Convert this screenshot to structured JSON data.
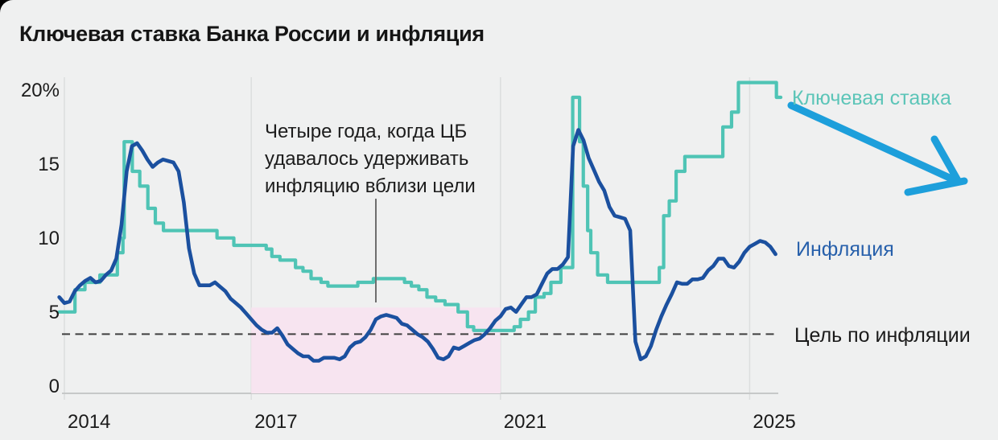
{
  "title": "Ключевая ставка Банка России и инфляция",
  "colors": {
    "background": "#eff0f0",
    "grid": "#dcdede",
    "axis": "#c6c8c8",
    "key_rate": "#4fc4b5",
    "key_rate_label": "#5cc5b8",
    "inflation": "#1b509f",
    "inflation_label": "#2760ab",
    "target_dash": "#3f3f3f",
    "highlight": "#f7e4f0",
    "pointer": "#6e6e6e",
    "arrow": "#1d9fdb"
  },
  "chart_data": {
    "type": "line",
    "title": "Ключевая ставка Банка России и инфляция",
    "x_ticks": [
      {
        "year": 2014,
        "label": "2014"
      },
      {
        "year": 2017,
        "label": "2017"
      },
      {
        "year": 2021,
        "label": "2021"
      },
      {
        "year": 2025,
        "label": "2025"
      }
    ],
    "y_ticks": [
      {
        "value": 20,
        "label": "20%"
      },
      {
        "value": 15,
        "label": "15"
      },
      {
        "value": 10,
        "label": "10"
      },
      {
        "value": 5,
        "label": "5"
      },
      {
        "value": 0,
        "label": "0"
      }
    ],
    "xlim": [
      2013.917,
      2025.5
    ],
    "ylim": [
      0,
      21.5
    ],
    "grid": "vertical-only",
    "legend_position": "right-inline",
    "target_line": {
      "value": 4,
      "label": "Цель по инфляции",
      "style": "dashed"
    },
    "highlight_region": {
      "x0": 2017,
      "x1": 2021,
      "y0": 0,
      "y1": 5.8,
      "label": "Четыре года, когда ЦБ\nудавалось удерживать\nинфляцию вблизи цели",
      "pointer_year": 2019.0
    },
    "series": [
      {
        "name": "Ключевая ставка",
        "type": "step",
        "unit": "%",
        "points": [
          [
            2013.917,
            5.5
          ],
          [
            2014.17,
            7.0
          ],
          [
            2014.33,
            7.5
          ],
          [
            2014.57,
            8.0
          ],
          [
            2014.85,
            9.5
          ],
          [
            2014.94,
            10.5
          ],
          [
            2014.96,
            17.0
          ],
          [
            2015.09,
            15.0
          ],
          [
            2015.21,
            14.0
          ],
          [
            2015.34,
            12.5
          ],
          [
            2015.46,
            11.5
          ],
          [
            2015.59,
            11.0
          ],
          [
            2016.45,
            10.5
          ],
          [
            2016.72,
            10.0
          ],
          [
            2017.24,
            9.75
          ],
          [
            2017.33,
            9.25
          ],
          [
            2017.46,
            9.0
          ],
          [
            2017.71,
            8.5
          ],
          [
            2017.83,
            8.25
          ],
          [
            2017.96,
            7.75
          ],
          [
            2018.12,
            7.5
          ],
          [
            2018.23,
            7.25
          ],
          [
            2018.71,
            7.5
          ],
          [
            2018.96,
            7.75
          ],
          [
            2019.46,
            7.5
          ],
          [
            2019.57,
            7.25
          ],
          [
            2019.69,
            7.0
          ],
          [
            2019.82,
            6.5
          ],
          [
            2019.96,
            6.25
          ],
          [
            2020.11,
            6.0
          ],
          [
            2020.32,
            5.5
          ],
          [
            2020.47,
            4.5
          ],
          [
            2020.57,
            4.25
          ],
          [
            2021.22,
            4.5
          ],
          [
            2021.32,
            5.0
          ],
          [
            2021.45,
            5.5
          ],
          [
            2021.56,
            6.5
          ],
          [
            2021.7,
            6.75
          ],
          [
            2021.81,
            7.5
          ],
          [
            2021.97,
            8.5
          ],
          [
            2022.16,
            20.0
          ],
          [
            2022.27,
            17.0
          ],
          [
            2022.33,
            14.0
          ],
          [
            2022.4,
            11.0
          ],
          [
            2022.45,
            9.5
          ],
          [
            2022.56,
            8.0
          ],
          [
            2022.72,
            7.5
          ],
          [
            2023.55,
            8.5
          ],
          [
            2023.62,
            12.0
          ],
          [
            2023.71,
            13.0
          ],
          [
            2023.82,
            15.0
          ],
          [
            2023.96,
            16.0
          ],
          [
            2024.57,
            18.0
          ],
          [
            2024.71,
            19.0
          ],
          [
            2024.82,
            21.0
          ],
          [
            2025.43,
            20.0
          ]
        ]
      },
      {
        "name": "Инфляция",
        "type": "line",
        "unit": "%",
        "x_start": 2013.917,
        "x_step_years": 0.08333,
        "values": [
          6.5,
          6.1,
          6.2,
          6.9,
          7.3,
          7.6,
          7.8,
          7.5,
          7.6,
          8.0,
          8.3,
          9.1,
          11.4,
          15.0,
          16.7,
          16.9,
          16.4,
          15.8,
          15.3,
          15.6,
          15.8,
          15.7,
          15.6,
          15.0,
          12.9,
          9.8,
          8.1,
          7.3,
          7.3,
          7.3,
          7.5,
          7.2,
          6.9,
          6.4,
          6.1,
          5.8,
          5.4,
          5.0,
          4.6,
          4.3,
          4.1,
          4.1,
          4.4,
          3.9,
          3.3,
          3.0,
          2.7,
          2.5,
          2.5,
          2.2,
          2.2,
          2.4,
          2.4,
          2.4,
          2.3,
          2.5,
          3.1,
          3.4,
          3.5,
          3.8,
          4.3,
          5.0,
          5.2,
          5.3,
          5.2,
          5.1,
          4.7,
          4.6,
          4.3,
          4.0,
          3.8,
          3.5,
          3.0,
          2.4,
          2.3,
          2.5,
          3.1,
          3.0,
          3.2,
          3.4,
          3.6,
          3.7,
          4.0,
          4.4,
          4.9,
          5.2,
          5.7,
          5.8,
          5.5,
          6.0,
          6.5,
          6.5,
          6.7,
          7.4,
          8.1,
          8.4,
          8.4,
          8.7,
          9.2,
          16.7,
          17.8,
          17.1,
          15.9,
          15.1,
          14.3,
          13.7,
          12.6,
          12.0,
          11.9,
          11.8,
          11.0,
          3.5,
          2.3,
          2.5,
          3.2,
          4.3,
          5.2,
          6.0,
          6.7,
          7.5,
          7.4,
          7.4,
          7.7,
          7.7,
          7.8,
          8.3,
          8.6,
          9.1,
          9.1,
          8.6,
          8.5,
          8.9,
          9.5,
          9.9,
          10.1,
          10.3,
          10.2,
          9.9,
          9.4
        ]
      }
    ]
  }
}
